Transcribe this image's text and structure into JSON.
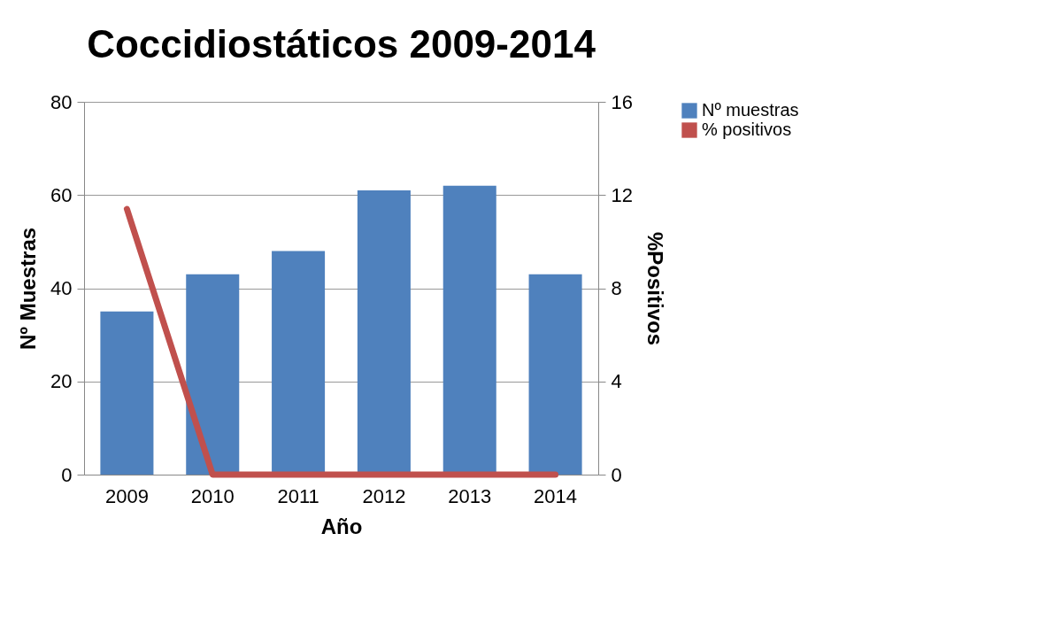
{
  "chart_data": {
    "type": "bar",
    "title": "Coccidiostáticos 2009-2014",
    "xlabel": "Año",
    "ylabel": "Nº Muestras",
    "y2label": "%Positivos",
    "categories": [
      "2009",
      "2010",
      "2011",
      "2012",
      "2013",
      "2014"
    ],
    "series": [
      {
        "name": "Nº muestras",
        "color": "#4f81bd",
        "values": [
          35,
          43,
          48,
          61,
          62,
          43
        ]
      },
      {
        "name": "% positivos",
        "type": "line",
        "axis": "y2",
        "color": "#c0504d",
        "values": [
          11.4,
          0,
          0,
          0,
          0,
          0
        ]
      }
    ],
    "ylim": [
      0,
      80
    ],
    "yticks": [
      0,
      20,
      40,
      60,
      80
    ],
    "y2lim": [
      0,
      16
    ],
    "y2ticks": [
      0,
      4,
      8,
      12,
      16
    ],
    "grid": "y",
    "legend": "right",
    "marker": "none",
    "line_style": "solid"
  }
}
